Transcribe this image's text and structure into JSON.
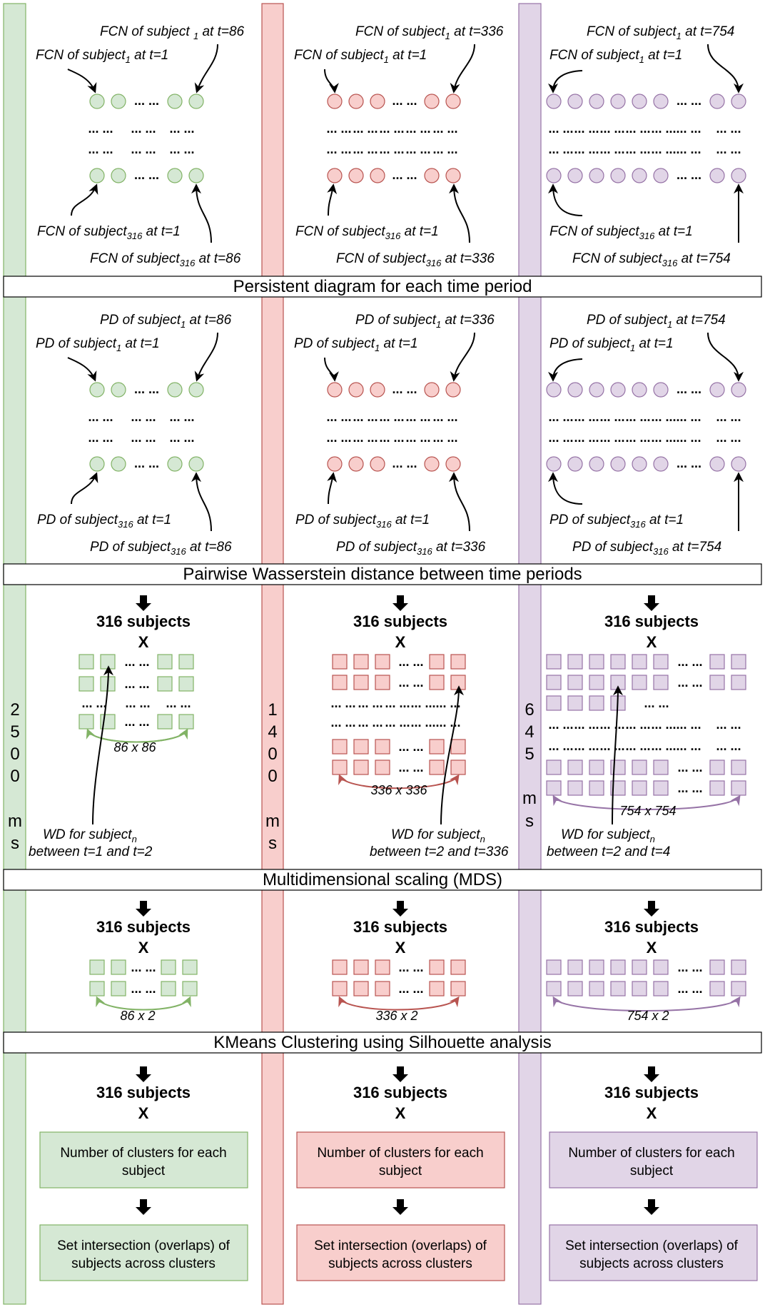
{
  "headers": [
    "Persistent diagram for each time period",
    "Pairwise Wasserstein distance between time periods",
    "Multidimensional scaling (MDS)",
    "KMeans Clustering using Silhouette analysis"
  ],
  "colors": {
    "green": {
      "fill": "#d5e8d4",
      "stroke": "#82b366",
      "arrow": "#82b366"
    },
    "red": {
      "fill": "#f8cecc",
      "stroke": "#b85450",
      "arrow": "#b85450"
    },
    "purple": {
      "fill": "#e1d5e7",
      "stroke": "#9673a6",
      "arrow": "#9673a6"
    }
  },
  "columns": [
    {
      "color": "green",
      "duration": [
        "2",
        "5",
        "0",
        "0",
        "",
        "m",
        "s"
      ],
      "fcn": {
        "top_left": {
          "pre": "FCN of subject",
          "sub": "1",
          "post": " at t=1"
        },
        "top_right": {
          "pre": "FCN of subject ",
          "sub": "1",
          "post": " at t=86"
        },
        "bottom_left": {
          "pre": "FCN of subject",
          "sub": "316",
          "post": " at t=1"
        },
        "bottom_right": {
          "pre": "FCN of subject",
          "sub": "316",
          "post": " at t=86"
        }
      },
      "pd": {
        "top_left": {
          "pre": "PD of subject",
          "sub": "1",
          "post": " at t=1"
        },
        "top_right": {
          "pre": "PD of subject",
          "sub": "1",
          "post": " at t=86"
        },
        "bottom_left": {
          "pre": "PD of subject",
          "sub": "316",
          "post": " at t=1"
        },
        "bottom_right": {
          "pre": "PD of subject",
          "sub": "316",
          "post": " at t=86"
        }
      },
      "subjects": "316 subjects",
      "x": "X",
      "wd_matrix": "86 x 86",
      "wd_label": {
        "pre": "WD for subject",
        "sub": "n",
        "line2": "between t=1 and t=2"
      },
      "mds_matrix": "86 x 2",
      "box1": [
        "Number of clusters for each",
        "subject"
      ],
      "box2": [
        "Set intersection (overlaps) of",
        "subjects across clusters"
      ]
    },
    {
      "color": "red",
      "duration": [
        "1",
        "4",
        "0",
        "0",
        "",
        "m",
        "s"
      ],
      "fcn": {
        "top_left": {
          "pre": "FCN of subject",
          "sub": "1",
          "post": " at t=1"
        },
        "top_right": {
          "pre": "FCN of subject",
          "sub": "1",
          "post": " at t=336"
        },
        "bottom_left": {
          "pre": "FCN of subject",
          "sub": "316",
          "post": " at t=1"
        },
        "bottom_right": {
          "pre": "FCN of subject",
          "sub": "316",
          "post": " at t=336"
        }
      },
      "pd": {
        "top_left": {
          "pre": "PD of subject",
          "sub": "1",
          "post": " at t=1"
        },
        "top_right": {
          "pre": "PD of subject",
          "sub": "1",
          "post": " at t=336"
        },
        "bottom_left": {
          "pre": "PD of subject",
          "sub": "316",
          "post": " at t=1"
        },
        "bottom_right": {
          "pre": "PD of subject",
          "sub": "316",
          "post": " at t=336"
        }
      },
      "subjects": "316 subjects",
      "x": "X",
      "wd_matrix": "336 x 336",
      "wd_label": {
        "pre": "WD for subject",
        "sub": "n",
        "line2": "between t=2 and t=336"
      },
      "mds_matrix": "336 x 2",
      "box1": [
        "Number of clusters for each",
        "subject"
      ],
      "box2": [
        "Set intersection (overlaps) of",
        "subjects across clusters"
      ]
    },
    {
      "color": "purple",
      "duration": [
        "6",
        "4",
        "5",
        "",
        "m",
        "s"
      ],
      "fcn": {
        "top_left": {
          "pre": "FCN of subject",
          "sub": "1",
          "post": " at t=1"
        },
        "top_right": {
          "pre": "FCN of subject",
          "sub": "1",
          "post": " at t=754"
        },
        "bottom_left": {
          "pre": "FCN of subject",
          "sub": "316",
          "post": " at t=1"
        },
        "bottom_right": {
          "pre": "FCN of subject",
          "sub": "316",
          "post": " at t=754"
        }
      },
      "pd": {
        "top_left": {
          "pre": "PD of subject",
          "sub": "1",
          "post": " at t=1"
        },
        "top_right": {
          "pre": "PD of subject",
          "sub": "1",
          "post": " at t=754"
        },
        "bottom_left": {
          "pre": "PD of subject",
          "sub": "316",
          "post": " at t=1"
        },
        "bottom_right": {
          "pre": "PD of subject",
          "sub": "316",
          "post": " at t=754"
        }
      },
      "subjects": "316 subjects",
      "x": "X",
      "wd_matrix": "754 x 754",
      "wd_label": {
        "pre": "WD for subject",
        "sub": "n",
        "line2": "between t=2 and t=4"
      },
      "mds_matrix": "754 x 2",
      "box1": [
        "Number of clusters for each",
        "subject"
      ],
      "box2": [
        "Set intersection (overlaps) of",
        "subjects across clusters"
      ]
    }
  ],
  "ellipsis": "... ..."
}
